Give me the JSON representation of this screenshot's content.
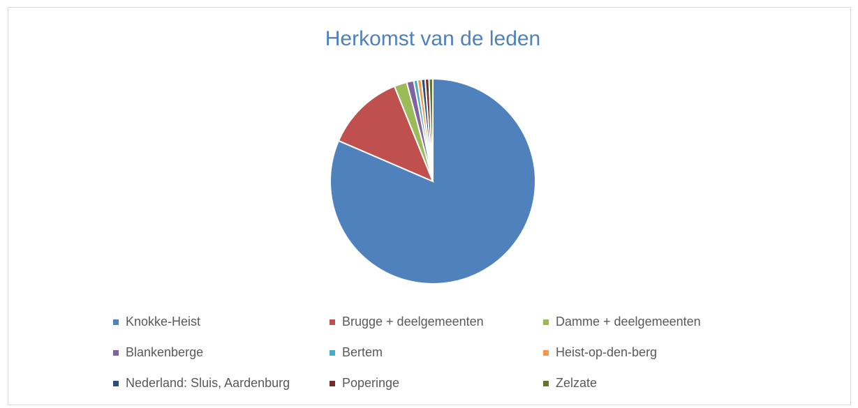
{
  "chart_data": {
    "type": "pie",
    "title": "Herkomst van de leden",
    "categories": [
      "Knokke-Heist",
      "Brugge + deelgemeenten",
      "Damme + deelgemeenten",
      "Blankenberge",
      "Bertem",
      "Heist-op-den-berg",
      "Nederland: Sluis, Aardenburg",
      "Poperinge",
      "Zelzate"
    ],
    "values": [
      81.4,
      12.4,
      2.0,
      1.1,
      0.6,
      0.6,
      0.6,
      0.6,
      0.6
    ],
    "colors": [
      "#4f81bd",
      "#c0504d",
      "#9bbb59",
      "#8064a2",
      "#4bacc6",
      "#f79646",
      "#2c4d75",
      "#772c2a",
      "#5f7530"
    ],
    "legend": "bottom"
  }
}
